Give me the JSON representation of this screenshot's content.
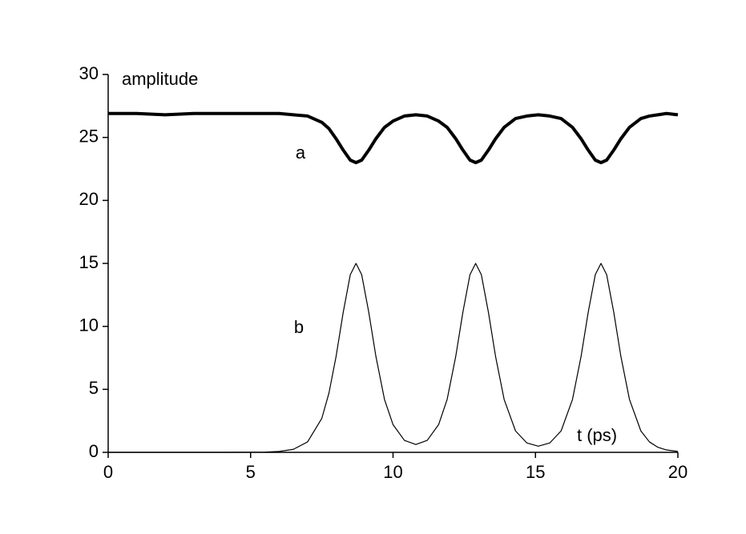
{
  "chart_data": {
    "type": "line",
    "x_label": "t (ps)",
    "y_label": "amplitude",
    "x": [
      0,
      1,
      2,
      3,
      4,
      5,
      5.5,
      6,
      6.5,
      7,
      7.5,
      7.75,
      8,
      8.25,
      8.5,
      8.7,
      8.9,
      9.15,
      9.4,
      9.7,
      10,
      10.4,
      10.8,
      11.2,
      11.6,
      11.9,
      12.2,
      12.45,
      12.7,
      12.9,
      13.1,
      13.35,
      13.6,
      13.9,
      14.3,
      14.7,
      15.1,
      15.5,
      15.9,
      16.3,
      16.6,
      16.85,
      17.1,
      17.3,
      17.5,
      17.75,
      18,
      18.3,
      18.7,
      19,
      19.3,
      19.6,
      20
    ],
    "series": [
      {
        "name": "a",
        "color": "#000000",
        "values": [
          26.9,
          26.9,
          26.8,
          26.9,
          26.9,
          26.9,
          26.9,
          26.9,
          26.8,
          26.7,
          26.2,
          25.7,
          24.9,
          24.0,
          23.2,
          23.0,
          23.2,
          24.0,
          24.9,
          25.8,
          26.3,
          26.7,
          26.8,
          26.7,
          26.3,
          25.8,
          24.9,
          24.0,
          23.2,
          23.0,
          23.2,
          24.0,
          24.9,
          25.8,
          26.5,
          26.7,
          26.8,
          26.7,
          26.5,
          25.8,
          24.9,
          24.0,
          23.2,
          23.0,
          23.2,
          24.0,
          24.9,
          25.8,
          26.5,
          26.7,
          26.8,
          26.9,
          26.8
        ]
      },
      {
        "name": "b",
        "color": "#000000",
        "values": [
          0,
          0,
          0,
          0,
          0,
          0.01,
          0.02,
          0.07,
          0.24,
          0.83,
          2.7,
          4.7,
          7.6,
          11.1,
          14.1,
          15,
          14.1,
          11.1,
          7.6,
          4.2,
          2.2,
          0.95,
          0.62,
          0.95,
          2.2,
          4.2,
          7.6,
          11.1,
          14.1,
          15,
          14.1,
          11.1,
          7.6,
          4.2,
          1.7,
          0.74,
          0.49,
          0.74,
          1.7,
          4.2,
          7.6,
          11.1,
          14.1,
          15,
          14.1,
          11.1,
          7.6,
          4.2,
          1.7,
          0.83,
          0.4,
          0.19,
          0.07
        ]
      }
    ],
    "xlim": [
      0,
      20
    ],
    "xticks": [
      0,
      5,
      10,
      15,
      20
    ],
    "ylim": [
      0,
      30
    ],
    "yticks": [
      0,
      5,
      10,
      15,
      20,
      25,
      30
    ],
    "grid": false
  }
}
